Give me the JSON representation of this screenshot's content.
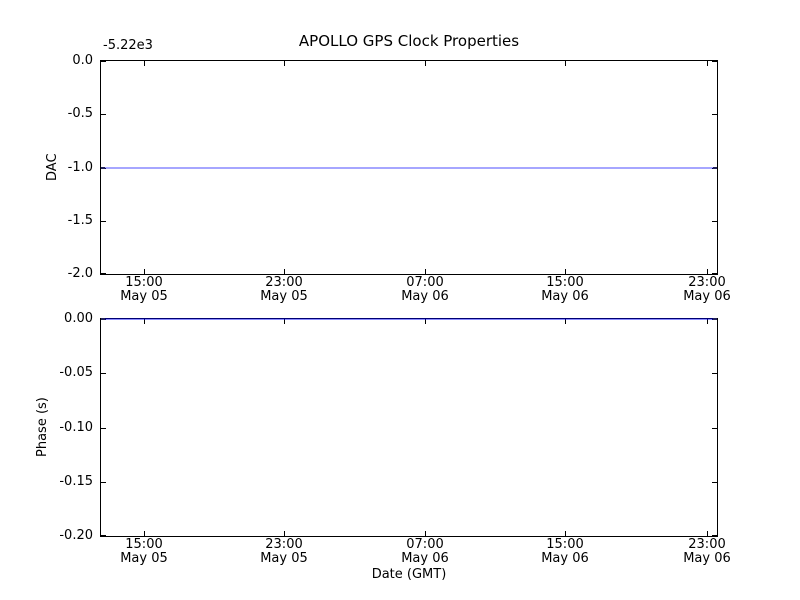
{
  "figure": {
    "background": "#ffffff",
    "spine_color": "#000000",
    "text_color": "#000000"
  },
  "chart_data": [
    {
      "name": "dac-subplot",
      "type": "line",
      "title": "APOLLO GPS Clock Properties",
      "ylabel": "DAC",
      "y_offset_text": "-5.22e3",
      "ylim": [
        -2.0,
        0.0
      ],
      "grid": false,
      "legend": null,
      "yticks": {
        "values": [
          0.0,
          -0.5,
          -1.0,
          -1.5,
          -2.0
        ],
        "labels": [
          "0.0",
          "-0.5",
          "-1.0",
          "-1.5",
          "-2.0"
        ]
      },
      "xticks": {
        "times": [
          "15:00",
          "23:00",
          "07:00",
          "15:00",
          "23:00"
        ],
        "dates": [
          "May 05",
          "May 05",
          "May 06",
          "May 06",
          "May 06"
        ],
        "fractions": [
          0.069,
          0.297,
          0.526,
          0.754,
          0.983
        ]
      },
      "series": [
        {
          "name": "DAC",
          "shape": "constant-horizontal",
          "y_displayed": -1.0,
          "y_actual": -5221.0,
          "color_rgba": "rgba(0,0,255,0.35)",
          "endpoint_cap_color": "#22225a",
          "endpoint_cap_width": 4
        }
      ]
    },
    {
      "name": "phase-subplot",
      "type": "line",
      "title": "",
      "ylabel": "Phase (s)",
      "xlabel": "Date (GMT)",
      "ylim": [
        -0.2,
        0.0
      ],
      "grid": false,
      "legend": null,
      "yticks": {
        "values": [
          0.0,
          -0.05,
          -0.1,
          -0.15,
          -0.2
        ],
        "labels": [
          "0.00",
          "-0.05",
          "-0.10",
          "-0.15",
          "-0.20"
        ]
      },
      "xticks": {
        "times": [
          "15:00",
          "23:00",
          "07:00",
          "15:00",
          "23:00"
        ],
        "dates": [
          "May 05",
          "May 05",
          "May 06",
          "May 06",
          "May 06"
        ],
        "fractions": [
          0.069,
          0.297,
          0.526,
          0.754,
          0.983
        ]
      },
      "series": [
        {
          "name": "Phase",
          "shape": "constant-horizontal",
          "y_displayed": 0.0,
          "y_actual": 0.0,
          "color_rgba": "rgba(0,0,255,0.45)",
          "endpoint_cap_color": "#22225a",
          "endpoint_cap_width": 4
        }
      ]
    }
  ]
}
